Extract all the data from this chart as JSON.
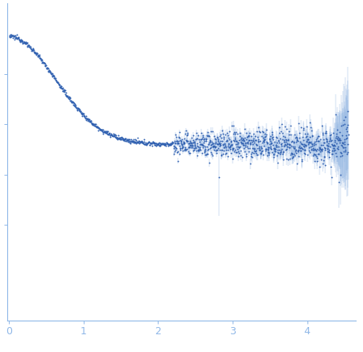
{
  "title": "",
  "xlabel": "",
  "ylabel": "",
  "xlim": [
    -0.02,
    4.65
  ],
  "ylim": [
    -0.18,
    1.08
  ],
  "x_ticks": [
    0,
    1,
    2,
    3,
    4
  ],
  "dot_color": "#3060b0",
  "error_color": "#8ab0e0",
  "axis_color": "#90b8e8",
  "tick_color": "#90b8e8",
  "background_color": "#ffffff",
  "dot_size": 1.8,
  "linewidth": 0.4
}
